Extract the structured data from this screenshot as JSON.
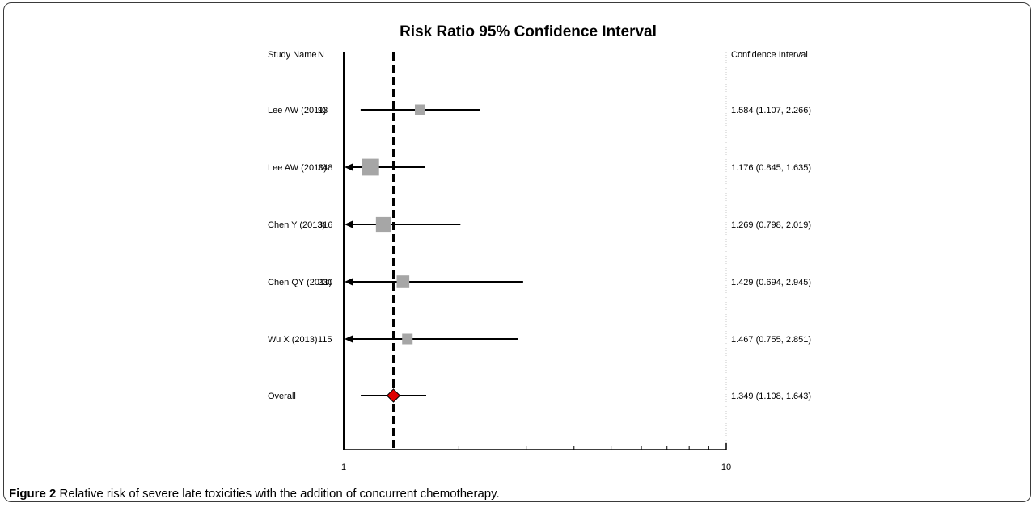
{
  "figure": {
    "caption_label": "Figure 2",
    "caption_text": "Relative risk of severe late toxicities with the addition of concurrent chemotherapy."
  },
  "chart_data": {
    "type": "forest",
    "title": "Risk Ratio 95% Confidence Interval",
    "columns": {
      "study": "Study Name",
      "n": "N",
      "ci": "Confidence Interval"
    },
    "x_scale": "log",
    "x_ticks": [
      "1",
      "10"
    ],
    "xlim": [
      1,
      10
    ],
    "reference_line": 1.349,
    "studies": [
      {
        "name": "Lee AW (2011)",
        "n": "93",
        "rr": 1.584,
        "lo": 1.107,
        "hi": 2.266,
        "ci_text": "1.584 (1.107, 2.266)",
        "weight": 1.0,
        "arrow_left": false
      },
      {
        "name": "Lee AW (2010)",
        "n": "348",
        "rr": 1.176,
        "lo": 0.845,
        "hi": 1.635,
        "ci_text": "1.176 (0.845, 1.635)",
        "weight": 1.6,
        "arrow_left": true
      },
      {
        "name": "Chen Y (2013)",
        "n": "316",
        "rr": 1.269,
        "lo": 0.798,
        "hi": 2.019,
        "ci_text": "1.269 (0.798, 2.019)",
        "weight": 1.4,
        "arrow_left": true
      },
      {
        "name": "Chen QY (2011)",
        "n": "230",
        "rr": 1.429,
        "lo": 0.694,
        "hi": 2.945,
        "ci_text": "1.429 (0.694, 2.945)",
        "weight": 1.2,
        "arrow_left": true
      },
      {
        "name": "Wu X (2013)",
        "n": "115",
        "rr": 1.467,
        "lo": 0.755,
        "hi": 2.851,
        "ci_text": "1.467 (0.755, 2.851)",
        "weight": 1.0,
        "arrow_left": true
      }
    ],
    "overall": {
      "name": "Overall",
      "rr": 1.349,
      "lo": 1.108,
      "hi": 1.643,
      "ci_text": "1.349 (1.108, 1.643)"
    },
    "colors": {
      "box": "#a6a6a6",
      "diamond": "#e00000",
      "line": "#000000",
      "guide": "#c8c8c8"
    }
  }
}
